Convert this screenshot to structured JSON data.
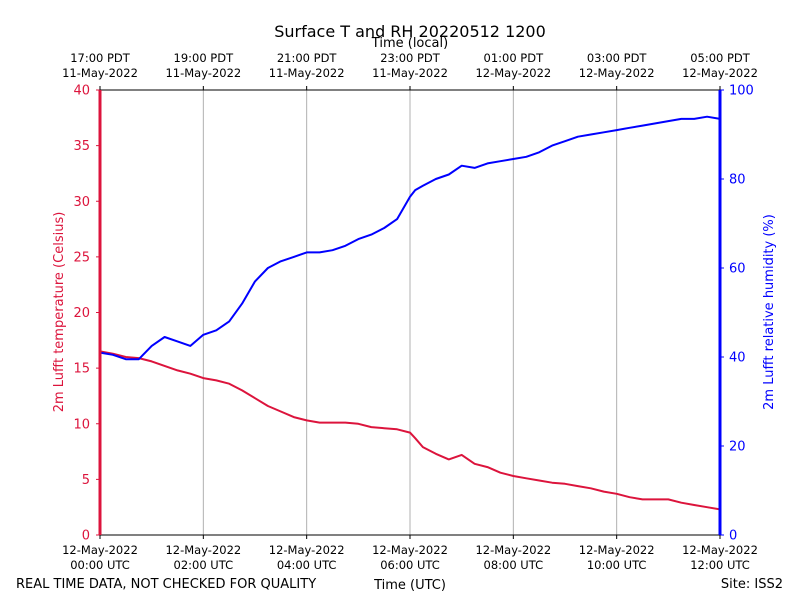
{
  "colors": {
    "temp": "#dc143c",
    "rh": "#0000ff",
    "grid": "#b0b0b0",
    "axis": "#000000"
  },
  "footer": {
    "left": "REAL TIME DATA, NOT CHECKED FOR QUALITY",
    "center": "Time (UTC)",
    "right": "Site: ISS2"
  },
  "chart_data": {
    "type": "line",
    "title": "Surface T and RH 20220512 1200",
    "xlabel": "Time (UTC)",
    "xlabel_top": "Time (local)",
    "ylabel_left": "2m Lufft temperature (Celsius)",
    "ylabel_right": "2m Lufft relative humidity (%)",
    "xlim": [
      0,
      12
    ],
    "ylim_left": [
      0,
      40
    ],
    "ylim_right": [
      0,
      100
    ],
    "grid": "vertical",
    "yticks_left": [
      0,
      5,
      10,
      15,
      20,
      25,
      30,
      35,
      40
    ],
    "yticks_right": [
      0,
      20,
      40,
      60,
      80,
      100
    ],
    "xticks_bottom": [
      {
        "x": 0,
        "line1": "12-May-2022",
        "line2": "00:00 UTC"
      },
      {
        "x": 2,
        "line1": "12-May-2022",
        "line2": "02:00 UTC"
      },
      {
        "x": 4,
        "line1": "12-May-2022",
        "line2": "04:00 UTC"
      },
      {
        "x": 6,
        "line1": "12-May-2022",
        "line2": "06:00 UTC"
      },
      {
        "x": 8,
        "line1": "12-May-2022",
        "line2": "08:00 UTC"
      },
      {
        "x": 10,
        "line1": "12-May-2022",
        "line2": "10:00 UTC"
      },
      {
        "x": 12,
        "line1": "12-May-2022",
        "line2": "12:00 UTC"
      }
    ],
    "xticks_top": [
      {
        "x": 0,
        "line1": "17:00 PDT",
        "line2": "11-May-2022"
      },
      {
        "x": 2,
        "line1": "19:00 PDT",
        "line2": "11-May-2022"
      },
      {
        "x": 4,
        "line1": "21:00 PDT",
        "line2": "11-May-2022"
      },
      {
        "x": 6,
        "line1": "23:00 PDT",
        "line2": "11-May-2022"
      },
      {
        "x": 8,
        "line1": "01:00 PDT",
        "line2": "12-May-2022"
      },
      {
        "x": 10,
        "line1": "03:00 PDT",
        "line2": "12-May-2022"
      },
      {
        "x": 12,
        "line1": "05:00 PDT",
        "line2": "12-May-2022"
      }
    ],
    "series": [
      {
        "name": "2m Lufft temperature (Celsius)",
        "axis": "left",
        "x": [
          0,
          0.25,
          0.5,
          0.75,
          1.0,
          1.25,
          1.5,
          1.75,
          2.0,
          2.25,
          2.5,
          2.75,
          3.0,
          3.25,
          3.5,
          3.75,
          4.0,
          4.25,
          4.5,
          4.75,
          5.0,
          5.25,
          5.5,
          5.75,
          6.0,
          6.1,
          6.25,
          6.5,
          6.75,
          7.0,
          7.25,
          7.5,
          7.75,
          8.0,
          8.25,
          8.5,
          8.75,
          9.0,
          9.25,
          9.5,
          9.75,
          10.0,
          10.25,
          10.5,
          10.75,
          11.0,
          11.25,
          11.5,
          11.75,
          12.0
        ],
        "y": [
          16.5,
          16.3,
          16.0,
          15.9,
          15.6,
          15.2,
          14.8,
          14.5,
          14.1,
          13.9,
          13.6,
          13.0,
          12.3,
          11.6,
          11.1,
          10.6,
          10.3,
          10.1,
          10.1,
          10.1,
          10.0,
          9.7,
          9.6,
          9.5,
          9.2,
          8.7,
          7.9,
          7.3,
          6.8,
          7.2,
          6.4,
          6.1,
          5.6,
          5.3,
          5.1,
          4.9,
          4.7,
          4.6,
          4.4,
          4.2,
          3.9,
          3.7,
          3.4,
          3.2,
          3.2,
          3.2,
          2.9,
          2.7,
          2.5,
          2.3
        ]
      },
      {
        "name": "2m Lufft relative humidity (%)",
        "axis": "right",
        "x": [
          0,
          0.25,
          0.5,
          0.75,
          1.0,
          1.25,
          1.5,
          1.75,
          2.0,
          2.25,
          2.5,
          2.75,
          3.0,
          3.25,
          3.5,
          3.75,
          4.0,
          4.25,
          4.5,
          4.75,
          5.0,
          5.25,
          5.5,
          5.75,
          6.0,
          6.1,
          6.25,
          6.5,
          6.75,
          7.0,
          7.25,
          7.5,
          7.75,
          8.0,
          8.25,
          8.5,
          8.75,
          9.0,
          9.25,
          9.5,
          9.75,
          10.0,
          10.25,
          10.5,
          10.75,
          11.0,
          11.25,
          11.5,
          11.75,
          12.0
        ],
        "y": [
          41,
          40.5,
          39.5,
          39.5,
          42.5,
          44.5,
          43.5,
          42.5,
          45,
          46,
          48,
          52,
          57,
          60,
          61.5,
          62.5,
          63.5,
          63.5,
          64,
          65,
          66.5,
          67.5,
          69,
          71,
          76,
          77.5,
          78.5,
          80,
          81,
          83,
          82.5,
          83.5,
          84,
          84.5,
          85,
          86,
          87.5,
          88.5,
          89.5,
          90,
          90.5,
          91,
          91.5,
          92,
          92.5,
          93,
          93.5,
          93.5,
          94,
          93.5
        ]
      }
    ]
  }
}
